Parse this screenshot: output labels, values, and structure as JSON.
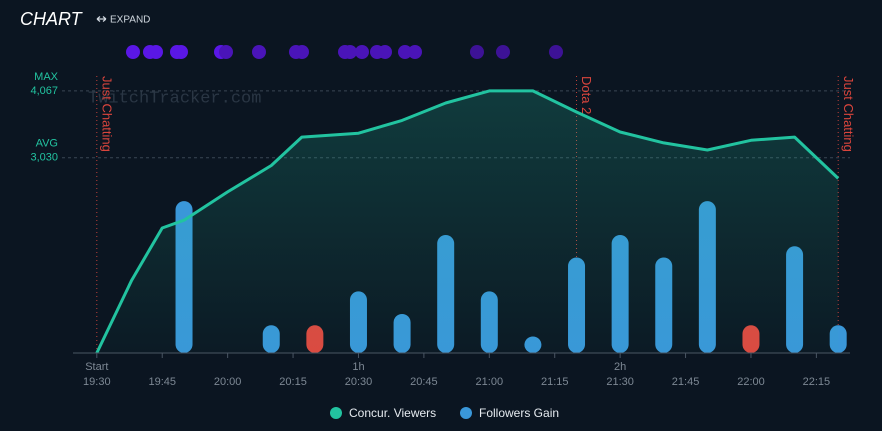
{
  "header": {
    "title": "CHART",
    "action": "EXPAND"
  },
  "chart_data": {
    "type": "line",
    "xlim": [
      "19:25",
      "22:25"
    ],
    "ylim": [
      0,
      4500
    ],
    "y2lim": [
      0,
      25
    ],
    "watermark": "TwitchTracker.com",
    "reference_lines": [
      {
        "name": "MAX",
        "value": 4067,
        "label": "4,067"
      },
      {
        "name": "AVG",
        "value": 3030,
        "label": "3,030"
      }
    ],
    "annotations": [
      {
        "x": "19:30",
        "label": "Just Chatting"
      },
      {
        "x": "21:20",
        "label": "Dota 2"
      },
      {
        "x": "22:20",
        "label": "Just Chatting"
      }
    ],
    "xticks": [
      "19:30",
      "19:45",
      "20:00",
      "20:15",
      "20:30",
      "20:45",
      "21:00",
      "21:15",
      "21:30",
      "21:45",
      "22:00",
      "22:15"
    ],
    "elapsed_ticks": [
      {
        "value": "19:30",
        "label": "Start"
      },
      {
        "value": "20:30",
        "label": "1h"
      },
      {
        "value": "21:30",
        "label": "2h"
      }
    ],
    "series": [
      {
        "name": "Concur. Viewers",
        "type": "line",
        "color": "#22c3a0",
        "x": [
          "19:30",
          "19:38",
          "19:45",
          "19:50",
          "20:00",
          "20:10",
          "20:17",
          "20:30",
          "20:40",
          "20:50",
          "21:00",
          "21:10",
          "21:20",
          "21:30",
          "21:40",
          "21:50",
          "22:00",
          "22:10",
          "22:20"
        ],
        "values": [
          0,
          1130,
          1940,
          2060,
          2500,
          2910,
          3350,
          3410,
          3610,
          3880,
          4067,
          4067,
          3740,
          3430,
          3260,
          3150,
          3300,
          3350,
          2710
        ]
      },
      {
        "name": "Followers Gain",
        "type": "bar",
        "axis": "y2",
        "color": "#3a97d9",
        "negative_color": "#e0473e",
        "x": [
          "19:50",
          "20:10",
          "20:20",
          "20:30",
          "20:40",
          "20:50",
          "21:00",
          "21:10",
          "21:20",
          "21:30",
          "21:40",
          "21:50",
          "22:00",
          "22:10",
          "22:20"
        ],
        "values": [
          12,
          1,
          -1,
          4,
          2,
          9,
          4,
          0,
          7,
          9,
          7,
          12,
          -1,
          8,
          1
        ]
      }
    ]
  }
}
